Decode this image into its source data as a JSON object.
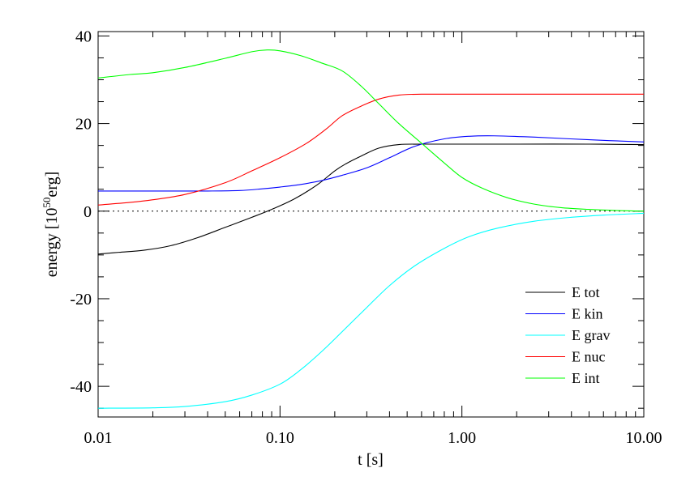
{
  "chart_data": {
    "type": "line",
    "xlabel": "t [s]",
    "ylabel_prefix": "energy [10",
    "ylabel_sup": "50",
    "ylabel_suffix": "erg]",
    "x_scale": "log",
    "xlim": [
      0.01,
      10.0
    ],
    "ylim": [
      -47,
      41
    ],
    "x_ticks": [
      0.01,
      0.1,
      1.0,
      10.0
    ],
    "x_tick_labels": [
      "0.01",
      "0.10",
      "1.00",
      "10.00"
    ],
    "y_ticks": [
      -40,
      -20,
      0,
      20,
      40
    ],
    "y_tick_labels": [
      "-40",
      "-20",
      "0",
      "20",
      "40"
    ],
    "zero_reference_line": true,
    "grid": false,
    "legend_position": "bottom-right",
    "series": [
      {
        "name": "E tot",
        "color": "#000000",
        "points": [
          [
            0.01,
            -9.8
          ],
          [
            0.013,
            -9.4
          ],
          [
            0.018,
            -8.9
          ],
          [
            0.025,
            -7.9
          ],
          [
            0.035,
            -6.1
          ],
          [
            0.05,
            -3.7
          ],
          [
            0.07,
            -1.4
          ],
          [
            0.09,
            0.4
          ],
          [
            0.12,
            2.8
          ],
          [
            0.16,
            6.0
          ],
          [
            0.2,
            9.2
          ],
          [
            0.23,
            10.8
          ],
          [
            0.28,
            12.6
          ],
          [
            0.35,
            14.4
          ],
          [
            0.45,
            15.2
          ],
          [
            0.6,
            15.3
          ],
          [
            1.0,
            15.3
          ],
          [
            2.0,
            15.3
          ],
          [
            5.0,
            15.3
          ],
          [
            10.0,
            15.2
          ]
        ]
      },
      {
        "name": "E kin",
        "color": "#0000ff",
        "points": [
          [
            0.01,
            4.6
          ],
          [
            0.02,
            4.6
          ],
          [
            0.04,
            4.6
          ],
          [
            0.06,
            4.7
          ],
          [
            0.08,
            5.1
          ],
          [
            0.1,
            5.5
          ],
          [
            0.13,
            6.1
          ],
          [
            0.17,
            7.0
          ],
          [
            0.22,
            8.2
          ],
          [
            0.3,
            9.9
          ],
          [
            0.4,
            12.2
          ],
          [
            0.55,
            14.8
          ],
          [
            0.8,
            16.5
          ],
          [
            1.1,
            17.1
          ],
          [
            1.5,
            17.2
          ],
          [
            2.5,
            16.9
          ],
          [
            5.0,
            16.3
          ],
          [
            10.0,
            15.8
          ]
        ]
      },
      {
        "name": "E grav",
        "color": "#00ffff",
        "points": [
          [
            0.01,
            -45.0
          ],
          [
            0.02,
            -44.9
          ],
          [
            0.03,
            -44.6
          ],
          [
            0.05,
            -43.5
          ],
          [
            0.07,
            -42.0
          ],
          [
            0.1,
            -39.5
          ],
          [
            0.13,
            -36.2
          ],
          [
            0.17,
            -32.0
          ],
          [
            0.22,
            -27.5
          ],
          [
            0.3,
            -22.0
          ],
          [
            0.4,
            -17.0
          ],
          [
            0.55,
            -12.5
          ],
          [
            0.8,
            -8.5
          ],
          [
            1.1,
            -5.8
          ],
          [
            1.6,
            -3.8
          ],
          [
            2.5,
            -2.3
          ],
          [
            4.0,
            -1.4
          ],
          [
            6.0,
            -0.9
          ],
          [
            10.0,
            -0.5
          ]
        ]
      },
      {
        "name": "E nuc",
        "color": "#ff0000",
        "points": [
          [
            0.01,
            1.4
          ],
          [
            0.015,
            2.0
          ],
          [
            0.02,
            2.6
          ],
          [
            0.03,
            3.8
          ],
          [
            0.05,
            6.5
          ],
          [
            0.07,
            9.2
          ],
          [
            0.1,
            12.2
          ],
          [
            0.14,
            15.5
          ],
          [
            0.18,
            18.8
          ],
          [
            0.22,
            21.8
          ],
          [
            0.28,
            24.0
          ],
          [
            0.35,
            25.6
          ],
          [
            0.45,
            26.5
          ],
          [
            0.6,
            26.7
          ],
          [
            1.0,
            26.7
          ],
          [
            3.0,
            26.7
          ],
          [
            10.0,
            26.7
          ]
        ]
      },
      {
        "name": "E int",
        "color": "#00ff00",
        "points": [
          [
            0.01,
            30.4
          ],
          [
            0.015,
            31.2
          ],
          [
            0.02,
            31.6
          ],
          [
            0.03,
            32.8
          ],
          [
            0.05,
            34.9
          ],
          [
            0.07,
            36.4
          ],
          [
            0.085,
            36.8
          ],
          [
            0.1,
            36.6
          ],
          [
            0.13,
            35.5
          ],
          [
            0.17,
            33.8
          ],
          [
            0.22,
            32.0
          ],
          [
            0.28,
            28.5
          ],
          [
            0.35,
            24.5
          ],
          [
            0.45,
            20.0
          ],
          [
            0.6,
            15.5
          ],
          [
            0.8,
            11.0
          ],
          [
            1.0,
            7.7
          ],
          [
            1.3,
            5.2
          ],
          [
            1.8,
            3.0
          ],
          [
            2.5,
            1.6
          ],
          [
            3.5,
            0.8
          ],
          [
            5.0,
            0.4
          ],
          [
            7.0,
            0.15
          ],
          [
            10.0,
            0.0
          ]
        ]
      }
    ]
  }
}
